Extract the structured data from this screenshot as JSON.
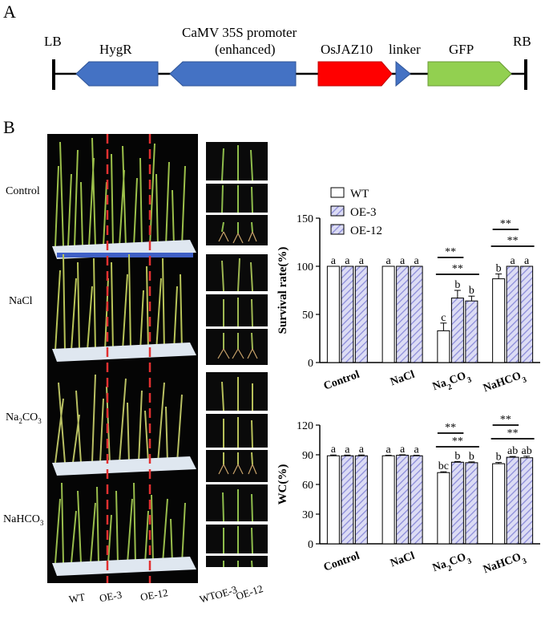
{
  "panel_a": {
    "letter": "A",
    "left_border": "LB",
    "right_border": "RB",
    "elements": [
      {
        "name": "HygR",
        "color": "#4472c4"
      },
      {
        "name": "CaMV 35S promoter",
        "sub": "(enhanced)",
        "color": "#4472c4"
      },
      {
        "name": "OsJAZ10",
        "color": "#ff0000"
      },
      {
        "name": "linker",
        "color": "#4472c4"
      },
      {
        "name": "GFP",
        "color": "#92d050"
      }
    ]
  },
  "panel_b": {
    "letter": "B",
    "treatments": [
      "Control",
      "NaCl",
      "Na₂CO₃",
      "NaHCO₃"
    ],
    "photo_bottom_labels": [
      "WT",
      "OE-3",
      "OE-12"
    ],
    "closeup_bottom_labels": [
      "WT",
      "OE-3",
      "OE-12"
    ]
  },
  "chart_data": [
    {
      "type": "bar",
      "categories": [
        "Control",
        "NaCl",
        "Na2CO3",
        "NaHCO3"
      ],
      "category_labels": [
        "Control",
        "NaCl",
        "Na₂CO₃",
        "NaHCO₃"
      ],
      "ylabel": "Survival rate(%)",
      "ylim": [
        0,
        150
      ],
      "yticks": [
        0,
        50,
        100,
        150
      ],
      "legend": [
        "WT",
        "OE-3",
        "OE-12"
      ],
      "legend_position": "top-left",
      "series": [
        {
          "name": "WT",
          "values": [
            100,
            100,
            33,
            87
          ],
          "errors": [
            0,
            0,
            8,
            5
          ],
          "letters": [
            "a",
            "a",
            "c",
            "b"
          ]
        },
        {
          "name": "OE-3",
          "values": [
            100,
            100,
            67,
            100
          ],
          "errors": [
            0,
            0,
            8,
            0
          ],
          "letters": [
            "a",
            "a",
            "b",
            "a"
          ]
        },
        {
          "name": "OE-12",
          "values": [
            100,
            100,
            64,
            100
          ],
          "errors": [
            0,
            0,
            5,
            0
          ],
          "letters": [
            "a",
            "a",
            "b",
            "a"
          ]
        }
      ],
      "significance": [
        {
          "group": 2,
          "marks": [
            "**",
            "**"
          ]
        },
        {
          "group": 3,
          "marks": [
            "**",
            "**"
          ]
        }
      ]
    },
    {
      "type": "bar",
      "categories": [
        "Control",
        "NaCl",
        "Na2CO3",
        "NaHCO3"
      ],
      "category_labels": [
        "Control",
        "NaCl",
        "Na₂CO₃",
        "NaHCO₃"
      ],
      "ylabel": "WC(%)",
      "ylim": [
        0,
        120
      ],
      "yticks": [
        0,
        30,
        60,
        90,
        120
      ],
      "series": [
        {
          "name": "WT",
          "values": [
            89,
            89,
            72,
            81
          ],
          "errors": [
            0.8,
            0.5,
            0.8,
            1.2
          ],
          "letters": [
            "a",
            "a",
            "bc",
            "b"
          ]
        },
        {
          "name": "OE-3",
          "values": [
            89,
            89.5,
            82.5,
            87.5
          ],
          "errors": [
            0.7,
            0.5,
            0.7,
            0.8
          ],
          "letters": [
            "a",
            "a",
            "b",
            "ab"
          ]
        },
        {
          "name": "OE-12",
          "values": [
            89,
            89,
            82,
            87
          ],
          "errors": [
            0.8,
            0.5,
            0.8,
            1.5
          ],
          "letters": [
            "a",
            "a",
            "b",
            "ab"
          ]
        }
      ],
      "significance": [
        {
          "group": 2,
          "marks": [
            "**",
            "**"
          ]
        },
        {
          "group": 3,
          "marks": [
            "**",
            "**"
          ]
        }
      ]
    }
  ]
}
